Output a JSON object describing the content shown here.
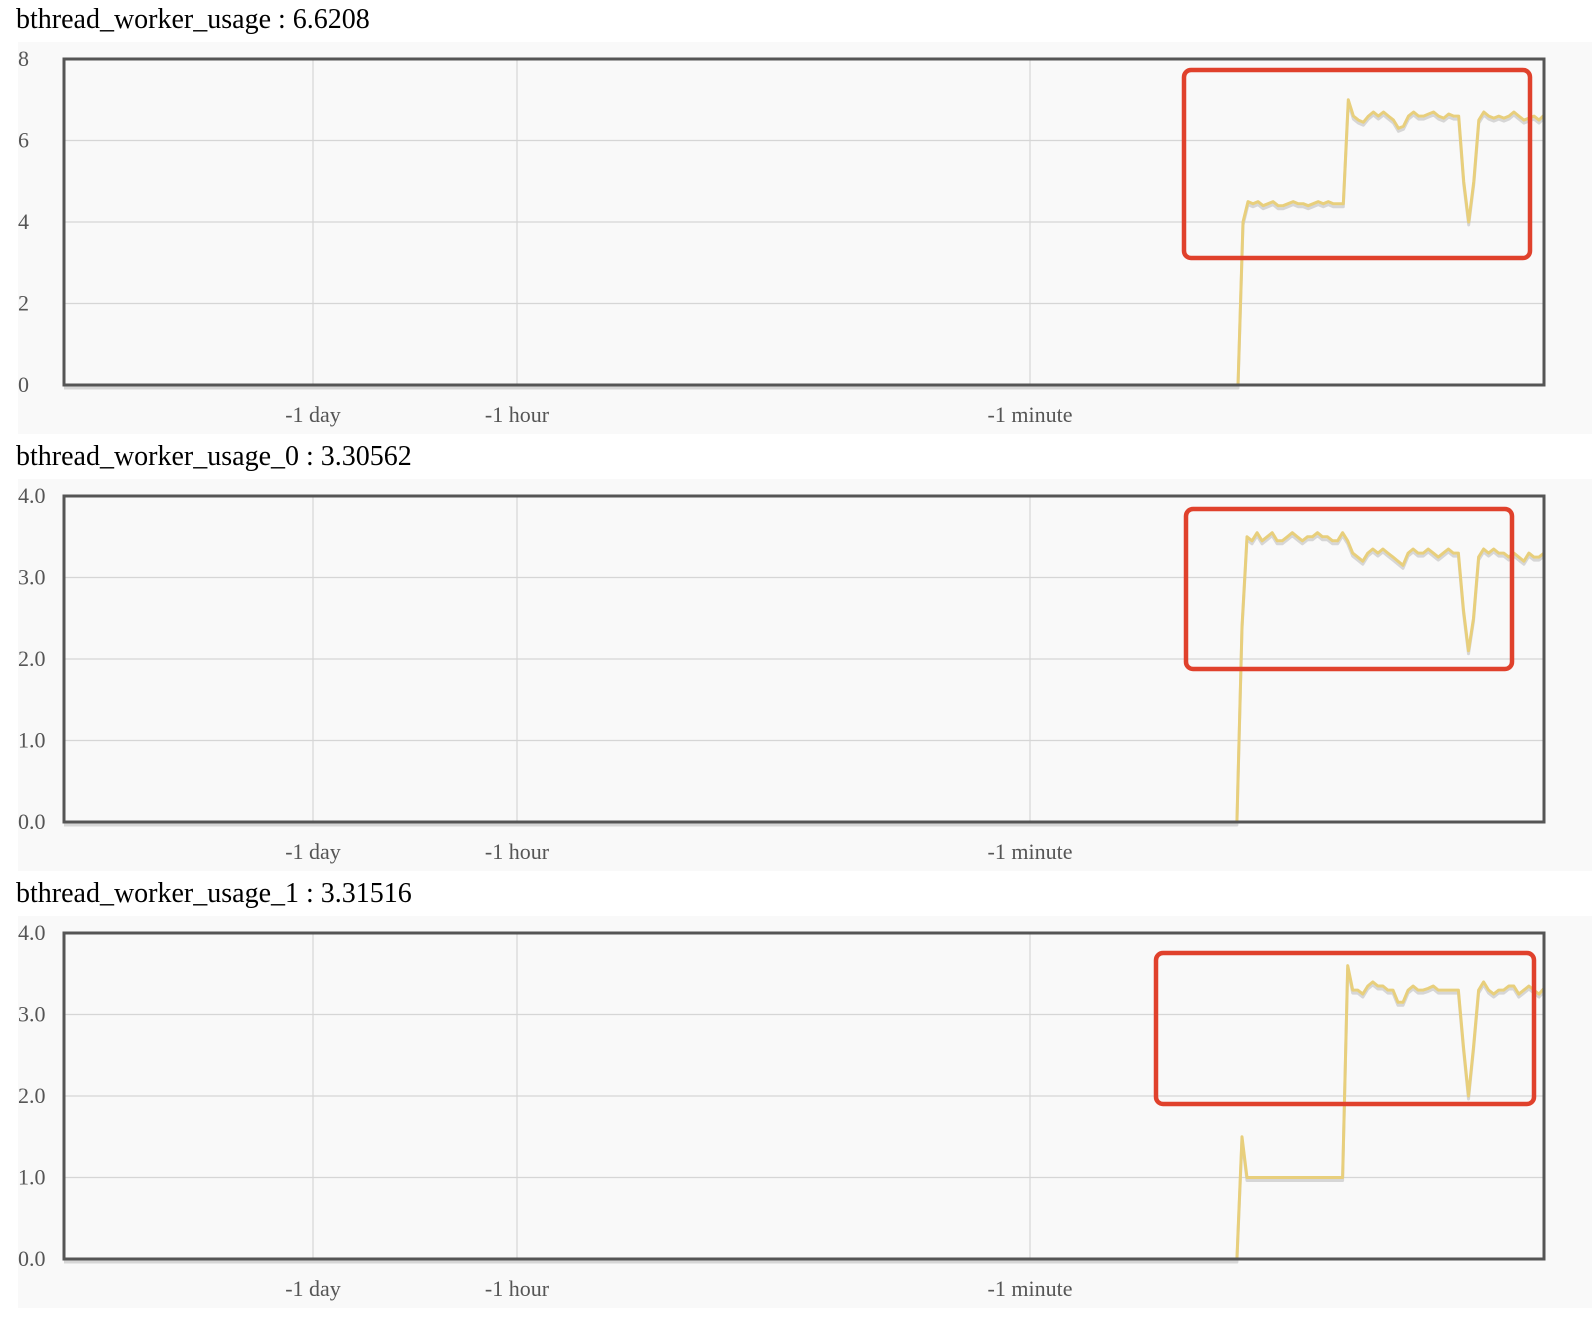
{
  "charts": [
    {
      "metric": "bthread_worker_usage",
      "separator": " : ",
      "value": "6.6208"
    },
    {
      "metric": "bthread_worker_usage_0",
      "separator": " : ",
      "value": "3.30562"
    },
    {
      "metric": "bthread_worker_usage_1",
      "separator": " : ",
      "value": "3.31516"
    }
  ],
  "colors": {
    "line": "#e8cf7c",
    "shadow": "#c8c8c8",
    "highlight_box": "#e0412c",
    "plot_background": "#f9f9f9",
    "border": "#555555",
    "grid": "#d6d6d6"
  },
  "chart_data": [
    {
      "type": "line",
      "title": "bthread_worker_usage : 6.6208",
      "xlabel": "",
      "ylabel": "",
      "ylim": [
        0,
        8
      ],
      "yticks": [
        "0",
        "2",
        "4",
        "6",
        "8"
      ],
      "xticks": [
        "-1 day",
        "-1 hour",
        "-1 minute"
      ],
      "grid": true,
      "highlight_box": true,
      "series": [
        {
          "values": [
            0,
            0,
            0,
            0,
            0,
            0,
            0,
            0,
            0,
            0,
            0,
            0,
            0,
            0,
            0,
            0,
            0,
            0,
            0,
            0,
            0,
            0,
            0,
            0,
            0,
            0,
            0,
            0,
            0,
            0,
            0,
            0,
            0,
            0,
            0,
            0,
            0,
            0,
            0,
            0,
            0,
            0,
            0,
            0,
            0,
            0,
            0,
            0,
            0,
            0,
            0,
            0,
            0,
            0,
            0,
            0,
            0,
            0,
            0,
            0,
            0,
            0,
            0,
            0,
            0,
            0,
            0,
            0,
            0,
            0,
            0,
            0,
            0,
            0,
            0,
            0,
            0,
            0,
            0,
            0,
            0,
            0,
            0,
            0,
            0,
            0,
            0,
            0,
            0,
            0,
            0,
            0,
            0,
            0,
            0,
            0,
            0,
            0,
            0,
            0,
            0,
            0,
            0,
            0,
            0,
            0,
            0,
            0,
            0,
            0,
            0,
            0,
            0,
            0,
            0,
            0,
            0,
            0,
            0,
            0,
            0,
            0,
            0,
            0,
            0,
            0,
            0,
            0,
            0,
            0,
            0,
            0,
            0,
            0,
            0,
            0,
            0,
            0,
            0,
            0,
            0,
            0,
            0,
            0,
            0,
            0,
            0,
            0,
            0,
            0,
            0,
            0,
            0,
            0,
            0,
            0,
            0,
            0,
            0,
            0,
            0,
            0,
            0,
            0,
            0,
            0,
            0,
            0,
            0,
            0,
            0,
            0,
            0,
            0,
            0,
            0,
            0,
            0,
            0,
            0,
            0,
            0,
            0,
            0,
            0,
            0,
            0,
            0,
            0,
            0,
            0,
            0,
            0,
            0,
            0,
            0,
            0,
            0,
            0,
            0,
            0,
            0,
            0,
            0,
            0,
            0,
            0,
            0,
            0,
            0,
            0,
            0,
            0,
            0,
            0,
            0,
            0,
            0,
            0,
            0,
            0,
            0,
            0,
            0,
            0,
            0,
            0,
            0,
            0,
            0,
            0,
            0,
            0,
            0,
            0,
            4.0,
            4.5,
            4.45,
            4.5,
            4.4,
            4.45,
            4.5,
            4.4,
            4.4,
            4.45,
            4.5,
            4.45,
            4.45,
            4.4,
            4.45,
            4.5,
            4.45,
            4.5,
            4.45,
            4.45,
            4.45,
            7.0,
            6.6,
            6.5,
            6.45,
            6.6,
            6.7,
            6.6,
            6.7,
            6.6,
            6.5,
            6.3,
            6.35,
            6.6,
            6.7,
            6.6,
            6.6,
            6.65,
            6.7,
            6.6,
            6.55,
            6.65,
            6.6,
            6.6,
            5.0,
            4.0,
            5.0,
            6.5,
            6.7,
            6.6,
            6.55,
            6.6,
            6.55,
            6.6,
            6.7,
            6.6,
            6.5,
            6.55,
            6.6,
            6.5,
            6.62
          ]
        }
      ]
    },
    {
      "type": "line",
      "title": "bthread_worker_usage_0 : 3.30562",
      "xlabel": "",
      "ylabel": "",
      "ylim": [
        0,
        4
      ],
      "yticks": [
        "0.0",
        "1.0",
        "2.0",
        "3.0",
        "4.0"
      ],
      "xticks": [
        "-1 day",
        "-1 hour",
        "-1 minute"
      ],
      "grid": true,
      "highlight_box": true,
      "series": [
        {
          "values": [
            0,
            0,
            0,
            0,
            0,
            0,
            0,
            0,
            0,
            0,
            0,
            0,
            0,
            0,
            0,
            0,
            0,
            0,
            0,
            0,
            0,
            0,
            0,
            0,
            0,
            0,
            0,
            0,
            0,
            0,
            0,
            0,
            0,
            0,
            0,
            0,
            0,
            0,
            0,
            0,
            0,
            0,
            0,
            0,
            0,
            0,
            0,
            0,
            0,
            0,
            0,
            0,
            0,
            0,
            0,
            0,
            0,
            0,
            0,
            0,
            0,
            0,
            0,
            0,
            0,
            0,
            0,
            0,
            0,
            0,
            0,
            0,
            0,
            0,
            0,
            0,
            0,
            0,
            0,
            0,
            0,
            0,
            0,
            0,
            0,
            0,
            0,
            0,
            0,
            0,
            0,
            0,
            0,
            0,
            0,
            0,
            0,
            0,
            0,
            0,
            0,
            0,
            0,
            0,
            0,
            0,
            0,
            0,
            0,
            0,
            0,
            0,
            0,
            0,
            0,
            0,
            0,
            0,
            0,
            0,
            0,
            0,
            0,
            0,
            0,
            0,
            0,
            0,
            0,
            0,
            0,
            0,
            0,
            0,
            0,
            0,
            0,
            0,
            0,
            0,
            0,
            0,
            0,
            0,
            0,
            0,
            0,
            0,
            0,
            0,
            0,
            0,
            0,
            0,
            0,
            0,
            0,
            0,
            0,
            0,
            0,
            0,
            0,
            0,
            0,
            0,
            0,
            0,
            0,
            0,
            0,
            0,
            0,
            0,
            0,
            0,
            0,
            0,
            0,
            0,
            0,
            0,
            0,
            0,
            0,
            0,
            0,
            0,
            0,
            0,
            0,
            0,
            0,
            0,
            0,
            0,
            0,
            0,
            0,
            0,
            0,
            0,
            0,
            0,
            0,
            0,
            0,
            0,
            0,
            0,
            0,
            0,
            0,
            0,
            0,
            0,
            0,
            0,
            0,
            0,
            0,
            0,
            0,
            0,
            0,
            0,
            0,
            0,
            0,
            0,
            0,
            0,
            0,
            0,
            2.4,
            3.5,
            3.45,
            3.55,
            3.45,
            3.5,
            3.55,
            3.45,
            3.45,
            3.5,
            3.55,
            3.5,
            3.45,
            3.5,
            3.5,
            3.55,
            3.5,
            3.5,
            3.45,
            3.45,
            3.55,
            3.45,
            3.3,
            3.25,
            3.2,
            3.3,
            3.35,
            3.3,
            3.35,
            3.3,
            3.25,
            3.2,
            3.15,
            3.3,
            3.35,
            3.3,
            3.3,
            3.35,
            3.3,
            3.25,
            3.3,
            3.35,
            3.3,
            3.3,
            2.6,
            2.1,
            2.5,
            3.25,
            3.35,
            3.3,
            3.35,
            3.3,
            3.3,
            3.25,
            3.3,
            3.25,
            3.2,
            3.3,
            3.25,
            3.25,
            3.3
          ]
        }
      ]
    },
    {
      "type": "line",
      "title": "bthread_worker_usage_1 : 3.31516",
      "xlabel": "",
      "ylabel": "",
      "ylim": [
        0,
        4
      ],
      "yticks": [
        "0.0",
        "1.0",
        "2.0",
        "3.0",
        "4.0"
      ],
      "xticks": [
        "-1 day",
        "-1 hour",
        "-1 minute"
      ],
      "grid": true,
      "highlight_box": true,
      "series": [
        {
          "values": [
            0,
            0,
            0,
            0,
            0,
            0,
            0,
            0,
            0,
            0,
            0,
            0,
            0,
            0,
            0,
            0,
            0,
            0,
            0,
            0,
            0,
            0,
            0,
            0,
            0,
            0,
            0,
            0,
            0,
            0,
            0,
            0,
            0,
            0,
            0,
            0,
            0,
            0,
            0,
            0,
            0,
            0,
            0,
            0,
            0,
            0,
            0,
            0,
            0,
            0,
            0,
            0,
            0,
            0,
            0,
            0,
            0,
            0,
            0,
            0,
            0,
            0,
            0,
            0,
            0,
            0,
            0,
            0,
            0,
            0,
            0,
            0,
            0,
            0,
            0,
            0,
            0,
            0,
            0,
            0,
            0,
            0,
            0,
            0,
            0,
            0,
            0,
            0,
            0,
            0,
            0,
            0,
            0,
            0,
            0,
            0,
            0,
            0,
            0,
            0,
            0,
            0,
            0,
            0,
            0,
            0,
            0,
            0,
            0,
            0,
            0,
            0,
            0,
            0,
            0,
            0,
            0,
            0,
            0,
            0,
            0,
            0,
            0,
            0,
            0,
            0,
            0,
            0,
            0,
            0,
            0,
            0,
            0,
            0,
            0,
            0,
            0,
            0,
            0,
            0,
            0,
            0,
            0,
            0,
            0,
            0,
            0,
            0,
            0,
            0,
            0,
            0,
            0,
            0,
            0,
            0,
            0,
            0,
            0,
            0,
            0,
            0,
            0,
            0,
            0,
            0,
            0,
            0,
            0,
            0,
            0,
            0,
            0,
            0,
            0,
            0,
            0,
            0,
            0,
            0,
            0,
            0,
            0,
            0,
            0,
            0,
            0,
            0,
            0,
            0,
            0,
            0,
            0,
            0,
            0,
            0,
            0,
            0,
            0,
            0,
            0,
            0,
            0,
            0,
            0,
            0,
            0,
            0,
            0,
            0,
            0,
            0,
            0,
            0,
            0,
            0,
            0,
            0,
            0,
            0,
            0,
            0,
            0,
            0,
            0,
            0,
            0,
            0,
            0,
            0,
            0,
            0,
            0,
            0,
            1.5,
            1.0,
            1.0,
            1.0,
            1.0,
            1.0,
            1.0,
            1.0,
            1.0,
            1.0,
            1.0,
            1.0,
            1.0,
            1.0,
            1.0,
            1.0,
            1.0,
            1.0,
            1.0,
            1.0,
            1.0,
            3.6,
            3.3,
            3.3,
            3.25,
            3.35,
            3.4,
            3.35,
            3.35,
            3.3,
            3.3,
            3.15,
            3.15,
            3.3,
            3.35,
            3.3,
            3.3,
            3.32,
            3.35,
            3.3,
            3.3,
            3.3,
            3.3,
            3.3,
            2.6,
            2.0,
            2.6,
            3.3,
            3.4,
            3.3,
            3.25,
            3.3,
            3.3,
            3.35,
            3.35,
            3.25,
            3.3,
            3.35,
            3.3,
            3.25,
            3.32
          ]
        }
      ]
    }
  ]
}
